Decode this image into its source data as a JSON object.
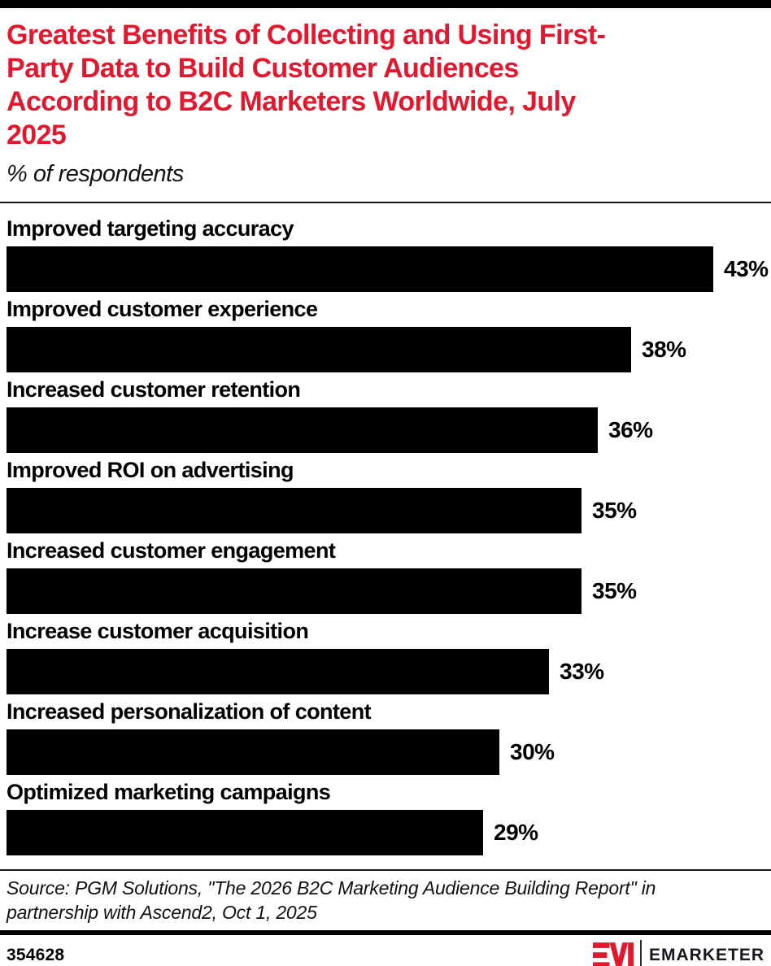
{
  "colors": {
    "accent_red": "#E2192E",
    "bar_black": "#000000",
    "background": "#FFFFFF"
  },
  "header": {
    "title": "Greatest Benefits of Collecting and Using First-\nParty Data to Build Customer Audiences\nAccording to B2C Marketers Worldwide, July\n2025",
    "subtitle": "% of respondents"
  },
  "chart_data": {
    "type": "bar",
    "orientation": "horizontal",
    "title": "Greatest Benefits of Collecting and Using First-Party Data to Build Customer Audiences According to B2C Marketers Worldwide, July 2025",
    "units_label": "% of respondents",
    "categories": [
      "Improved targeting accuracy",
      "Improved customer experience",
      "Increased customer retention",
      "Improved ROI on advertising",
      "Increased customer engagement",
      "Increase customer acquisition",
      "Increased personalization of content",
      "Optimized marketing campaigns"
    ],
    "values": [
      43,
      38,
      36,
      35,
      35,
      33,
      30,
      29
    ],
    "value_suffix": "%",
    "value_label_position": "right-of-bar",
    "bar_color": "#000000",
    "grid": false,
    "axis_shown": false
  },
  "footer": {
    "source": "Source: PGM Solutions, \"The 2026 B2C Marketing Audience Building Report\" in\npartnership with Ascend2, Oct 1, 2025",
    "chart_id": "354628",
    "brand_wordmark": "EMARKETER",
    "logo_icon": "em-monogram-icon"
  }
}
